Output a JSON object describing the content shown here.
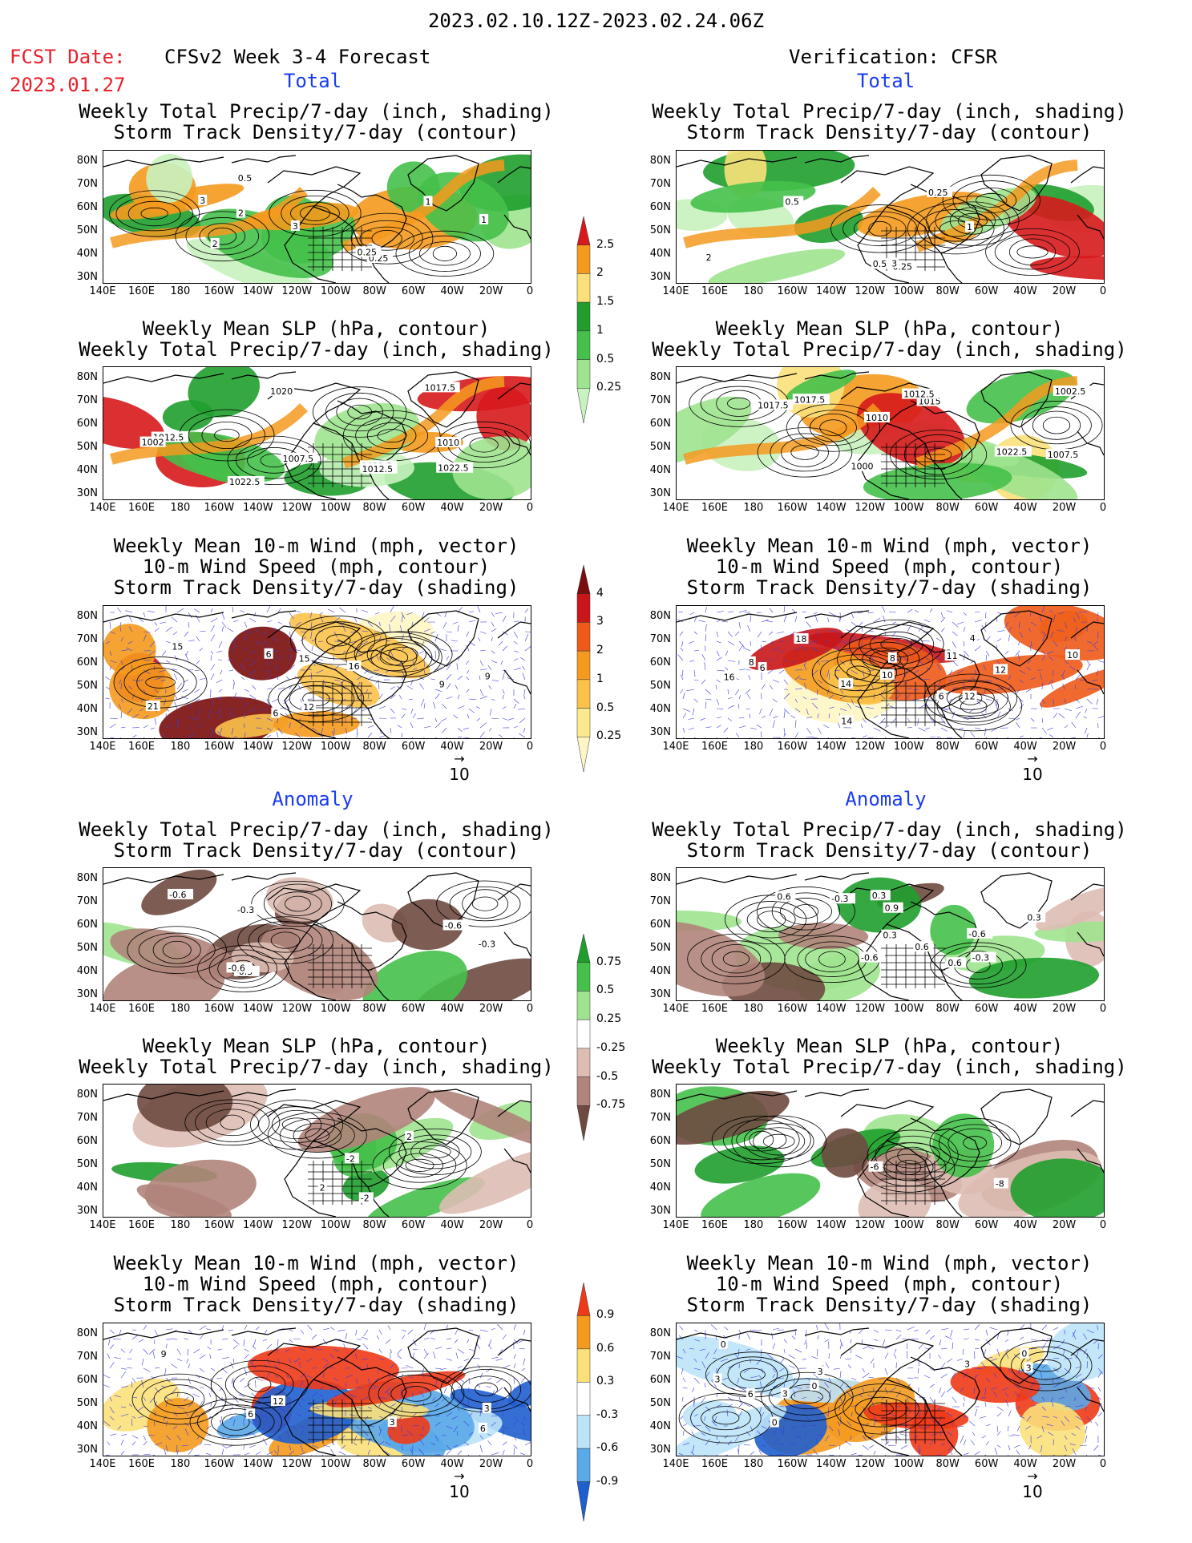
{
  "header": {
    "date_range": "2023.02.10.12Z-2023.02.24.06Z",
    "fcst_label": "FCST Date:",
    "fcst_date": "2023.01.27",
    "left_title": "CFSv2 Week 3-4 Forecast",
    "right_title": "Verification: CFSR",
    "total_label": "Total",
    "anomaly_label": "Anomaly"
  },
  "titles": {
    "precip_storm": [
      "Weekly Total Precip/7-day (inch, shading)",
      "Storm Track Density/7-day (contour)"
    ],
    "slp_precip": [
      "Weekly Mean SLP (hPa, contour)",
      "Weekly Total Precip/7-day (inch, shading)"
    ],
    "wind": [
      "Weekly Mean 10-m Wind (mph, vector)",
      "10-m Wind Speed (mph, contour)",
      "Storm Track Density/7-day (shading)"
    ]
  },
  "axes": {
    "lat_labels": [
      "80N",
      "70N",
      "60N",
      "50N",
      "40N",
      "30N"
    ],
    "lon_labels": [
      "140E",
      "160E",
      "180",
      "160W",
      "140W",
      "120W",
      "100W",
      "80W",
      "60W",
      "40W",
      "20W",
      "0"
    ]
  },
  "vector_ref": "10",
  "colorbars": {
    "precip_total": {
      "labels": [
        "2.5",
        "2",
        "1.5",
        "1",
        "0.5",
        "0.25"
      ],
      "colors": [
        "#d7191c",
        "#f49a1e",
        "#fbe07a",
        "#1f9e2e",
        "#45c04a",
        "#9ee38f",
        "#c8f2bf"
      ]
    },
    "storm_total": {
      "labels": [
        "4",
        "3",
        "2",
        "1",
        "0.5",
        "0.25"
      ],
      "colors": [
        "#7a0d0d",
        "#c9161a",
        "#ee5a1a",
        "#f49a1e",
        "#fbc24a",
        "#fbe98e",
        "#fdf6c4"
      ]
    },
    "precip_anom": {
      "labels": [
        "0.75",
        "0.5",
        "0.25",
        "-0.25",
        "-0.5",
        "-0.75"
      ],
      "colors": [
        "#1f9e2e",
        "#45c04a",
        "#9ee38f",
        "#ffffff",
        "#ddbdb3",
        "#b0847a",
        "#6e4a40"
      ]
    },
    "storm_anom": {
      "labels": [
        "0.9",
        "0.6",
        "0.3",
        "-0.3",
        "-0.6",
        "-0.9"
      ],
      "colors": [
        "#ee3a18",
        "#f49a1e",
        "#fbe07a",
        "#ffffff",
        "#bde3f8",
        "#5aa9e8",
        "#1f5fcf"
      ]
    }
  },
  "panel_labels": {
    "f1": [
      "0.25",
      "0.5",
      "2",
      "3",
      "1",
      "0.25",
      "1",
      "2",
      "3"
    ],
    "v1": [
      "0.25",
      "0.5",
      "2",
      "3",
      "1",
      "0.5",
      "0.25"
    ],
    "f2": [
      "1020",
      "1022.5",
      "1017.5",
      "1010",
      "1012.5",
      "1022.5",
      "1022.5",
      "1012.5",
      "1007.5",
      "1002"
    ],
    "v2": [
      "1017.5",
      "1022.5",
      "1015",
      "1017.5",
      "1012.5",
      "1010",
      "1007.5",
      "1002.5",
      "1000"
    ],
    "f3": [
      "15",
      "9",
      "6",
      "12",
      "15",
      "21",
      "16",
      "9",
      "6"
    ],
    "v3": [
      "10",
      "8",
      "6",
      "12",
      "14",
      "11",
      "18",
      "4",
      "14",
      "12",
      "8",
      "6",
      "10",
      "16"
    ],
    "f4": [
      "-0.6",
      "-0.3",
      "-0.3",
      "-0.6",
      "-0.3",
      "-0.6"
    ],
    "v4": [
      "-0.6",
      "0.3",
      "-0.3",
      "-0.6",
      "0.6",
      "0.3",
      "0.6",
      "0.9",
      "-0.3",
      "0.3",
      "0.6"
    ],
    "f5": [
      "-2",
      "-2",
      "2",
      "2"
    ],
    "v5": [
      "-6",
      "-8"
    ],
    "f6": [
      "6",
      "3",
      "9",
      "12",
      "6",
      "3"
    ],
    "v6": [
      "0",
      "6",
      "3",
      "3",
      "0",
      "3",
      "3",
      "3",
      "0",
      "0"
    ]
  }
}
